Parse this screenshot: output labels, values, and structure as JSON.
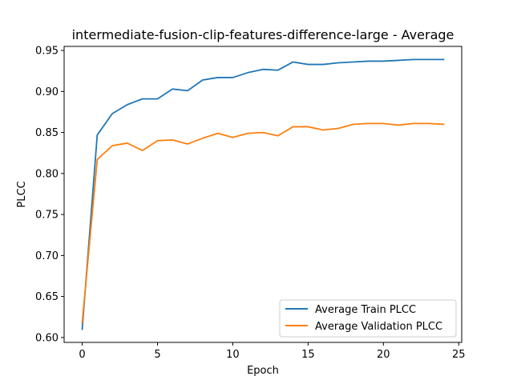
{
  "chart_data": {
    "type": "line",
    "title": "intermediate-fusion-clip-features-difference-large - Average",
    "xlabel": "Epoch",
    "ylabel": "PLCC",
    "xlim": [
      -1.2,
      25.2
    ],
    "ylim": [
      0.594,
      0.955
    ],
    "xticks": [
      0,
      5,
      10,
      15,
      20,
      25
    ],
    "xtick_labels": [
      "0",
      "5",
      "10",
      "15",
      "20",
      "25"
    ],
    "yticks": [
      0.6,
      0.65,
      0.7,
      0.75,
      0.8,
      0.85,
      0.9,
      0.95
    ],
    "ytick_labels": [
      "0.60",
      "0.65",
      "0.70",
      "0.75",
      "0.80",
      "0.85",
      "0.90",
      "0.95"
    ],
    "grid": false,
    "legend_position": "bottom-right",
    "x": [
      0,
      1,
      2,
      3,
      4,
      5,
      6,
      7,
      8,
      9,
      10,
      11,
      12,
      13,
      14,
      15,
      16,
      17,
      18,
      19,
      20,
      21,
      22,
      23,
      24
    ],
    "series": [
      {
        "name": "Average Train PLCC",
        "color": "#1f77b4",
        "values": [
          0.61,
          0.847,
          0.873,
          0.884,
          0.891,
          0.891,
          0.903,
          0.901,
          0.914,
          0.917,
          0.917,
          0.923,
          0.927,
          0.926,
          0.936,
          0.933,
          0.933,
          0.935,
          0.936,
          0.937,
          0.937,
          0.938,
          0.939,
          0.939,
          0.939
        ]
      },
      {
        "name": "Average Validation PLCC",
        "color": "#ff7f0e",
        "values": [
          0.618,
          0.817,
          0.834,
          0.837,
          0.828,
          0.84,
          0.841,
          0.836,
          0.843,
          0.849,
          0.844,
          0.849,
          0.85,
          0.846,
          0.857,
          0.857,
          0.853,
          0.855,
          0.86,
          0.861,
          0.861,
          0.859,
          0.861,
          0.861,
          0.86
        ]
      }
    ]
  }
}
